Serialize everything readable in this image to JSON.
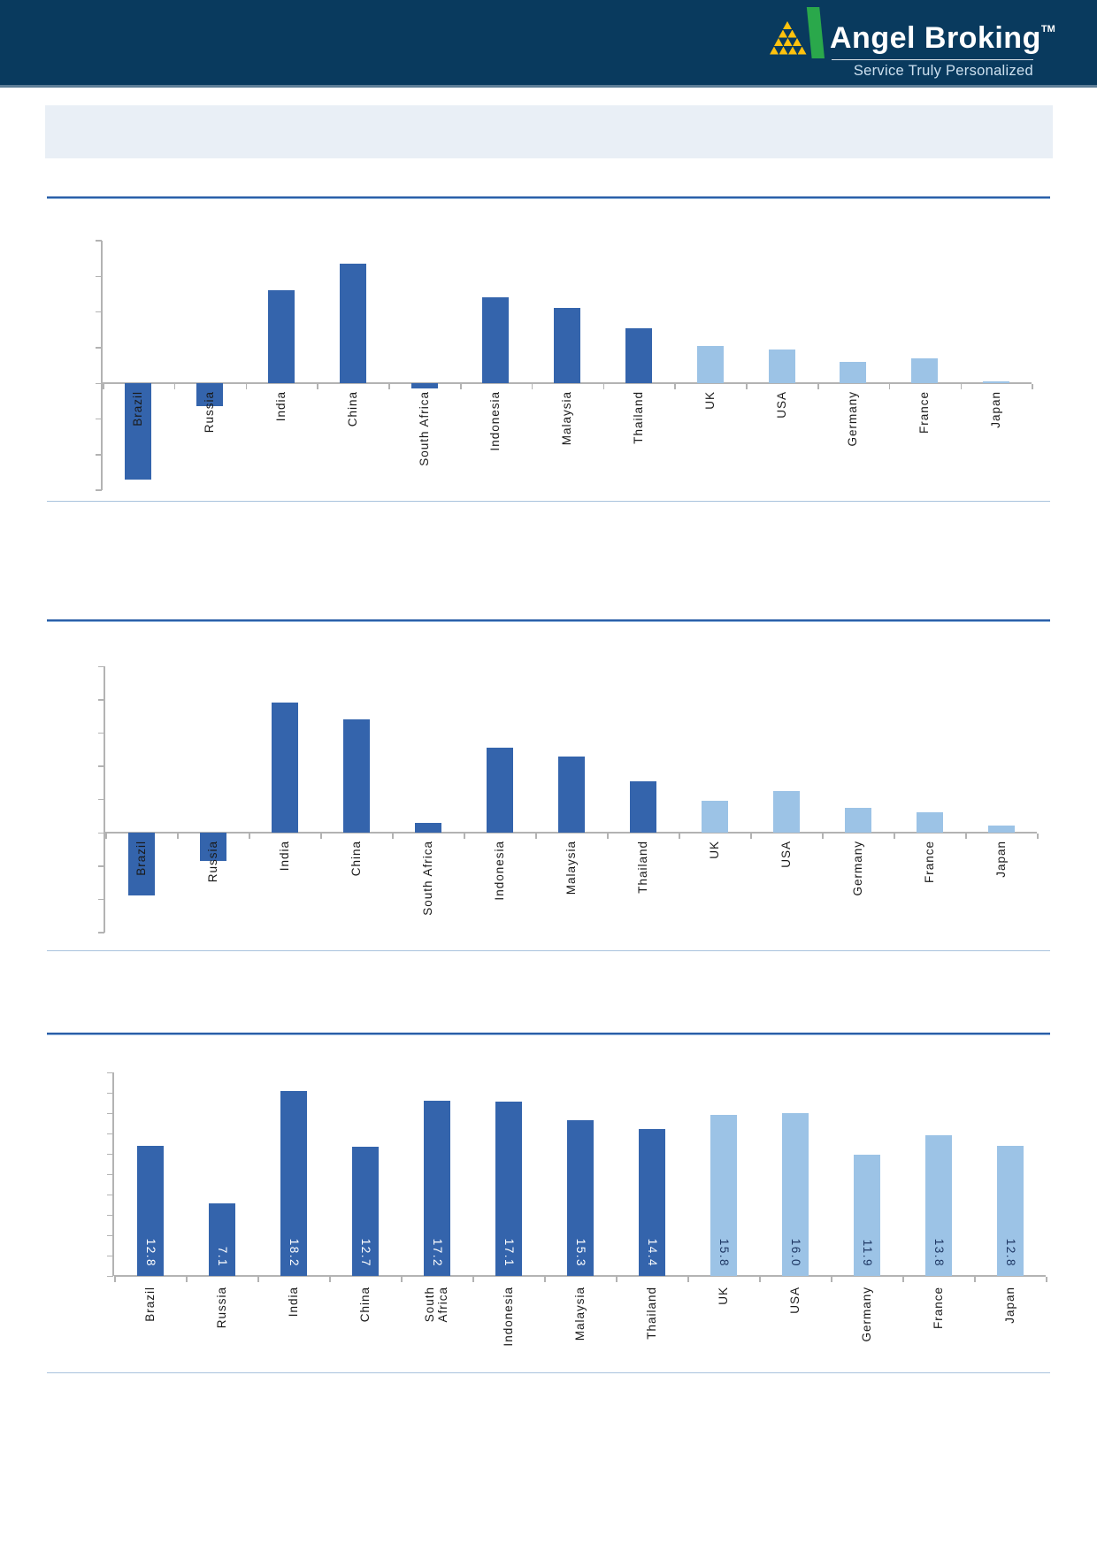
{
  "header": {
    "brand": "Angel Broking",
    "trademark": "TM",
    "tagline": "Service Truly Personalized",
    "bg": "#093a5e",
    "brand_color": "#ffffff",
    "tagline_color": "#cde0ef",
    "logo_green": "#2aa84b",
    "logo_yellow": "#ffc20e"
  },
  "banner": {
    "bg": "#e9eff6"
  },
  "colors": {
    "em_bar": "#3464ac",
    "dm_bar": "#9cc3e6",
    "axis": "#b3b3b3",
    "rule_dark": "#2b5fa8",
    "rule_light": "#91b4dc",
    "section_line": "#a9c3dd",
    "category_label": "#1a1a1a",
    "value_on_dark": "#ffffff",
    "value_on_light": "#1f3864"
  },
  "chart_data": [
    {
      "type": "bar",
      "title": "",
      "xlabel": "",
      "ylabel": "",
      "categories": [
        "Brazil",
        "Russia",
        "India",
        "China",
        "South Africa",
        "Indonesia",
        "Malaysia",
        "Thailand",
        "UK",
        "USA",
        "Germany",
        "France",
        "Japan"
      ],
      "values": [
        -5.4,
        -1.3,
        5.2,
        6.7,
        -0.3,
        4.8,
        4.2,
        3.1,
        2.1,
        1.9,
        1.2,
        1.4,
        0.1
      ],
      "ylim": [
        -6,
        8
      ],
      "tick_step": 2,
      "grid": false,
      "legend": "none",
      "em_count": 8,
      "note": "dark blue bars = emerging markets, light blue bars = developed markets; no visible y-axis numbers"
    },
    {
      "type": "bar",
      "title": "",
      "xlabel": "",
      "ylabel": "",
      "categories": [
        "Brazil",
        "Russia",
        "India",
        "China",
        "South Africa",
        "Indonesia",
        "Malaysia",
        "Thailand",
        "UK",
        "USA",
        "Germany",
        "France",
        "Japan"
      ],
      "values": [
        -3.8,
        -1.7,
        7.8,
        6.8,
        0.6,
        5.1,
        4.6,
        3.1,
        1.9,
        2.5,
        1.5,
        1.2,
        0.4
      ],
      "ylim": [
        -6,
        10
      ],
      "tick_step": 2,
      "grid": false,
      "legend": "none",
      "em_count": 8,
      "note": "dark blue bars = emerging markets, light blue bars = developed markets; no visible y-axis numbers"
    },
    {
      "type": "bar",
      "title": "",
      "xlabel": "",
      "ylabel": "",
      "categories": [
        "Brazil",
        "Russia",
        "India",
        "China",
        "South Africa",
        "Indonesia",
        "Malaysia",
        "Thailand",
        "UK",
        "USA",
        "Germany",
        "France",
        "Japan"
      ],
      "values": [
        12.8,
        7.1,
        18.2,
        12.7,
        17.2,
        17.1,
        15.3,
        14.4,
        15.8,
        16.0,
        11.9,
        13.8,
        12.8
      ],
      "value_labels": [
        "12.8",
        "7.1",
        "18.2",
        "12.7",
        "17.2",
        "17.1",
        "15.3",
        "14.4",
        "15.8",
        "16.0",
        "11.9",
        "13.8",
        "12.8"
      ],
      "ylim": [
        0,
        20
      ],
      "tick_step": 2,
      "grid": false,
      "legend": "none",
      "em_count": 8,
      "note": "values printed vertically inside bars; dark blue = emerging, light blue = developed"
    }
  ]
}
